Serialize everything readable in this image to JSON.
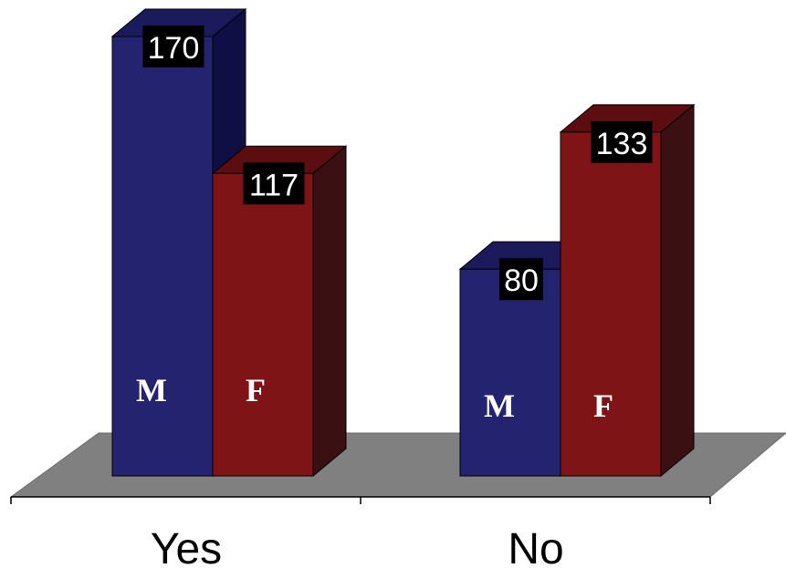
{
  "chart_data": {
    "type": "bar",
    "categories": [
      "Yes",
      "No"
    ],
    "series": [
      {
        "key": "M",
        "label": "M",
        "values": [
          170,
          80
        ],
        "color": "#232370",
        "side_color": "#0f0f45",
        "top_color": "#1a1a5c"
      },
      {
        "key": "F",
        "label": "F",
        "values": [
          117,
          133
        ],
        "color": "#7f1416",
        "side_color": "#3b1012",
        "top_color": "#5c0d10"
      }
    ],
    "ylim": [
      0,
      170
    ],
    "grid": false,
    "legend": "none",
    "floor_color": "#808080"
  }
}
